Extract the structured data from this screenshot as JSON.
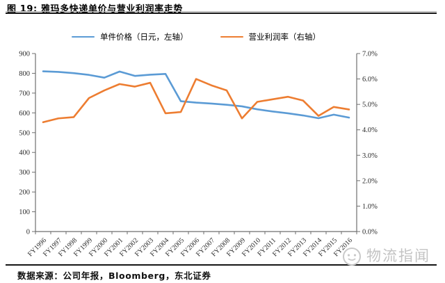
{
  "figure": {
    "title": "图 19:  雅玛多快递单价与营业利润率走势",
    "source": "数据来源：公司年报，Bloomberg，东北证券",
    "watermark": "物流指闻"
  },
  "chart_data": {
    "type": "line",
    "title": "雅玛多快递单价与营业利润率走势",
    "categories": [
      "FY1996",
      "FY1997",
      "FY1998",
      "FY1999",
      "FY2000",
      "FY2001",
      "FY2002",
      "FY2003",
      "FY2004",
      "FY2005",
      "FY2006",
      "FY2007",
      "FY2008",
      "FY2009",
      "FY2010",
      "FY2011",
      "FY2012",
      "FY2013",
      "FY2014",
      "FY2015",
      "FY2016"
    ],
    "series": [
      {
        "name": "单件价格（日元，左轴）",
        "axis": "left",
        "color": "#5B9BD5",
        "values": [
          810,
          807,
          801,
          792,
          778,
          809,
          787,
          793,
          797,
          659,
          652,
          647,
          641,
          633,
          618,
          607,
          598,
          587,
          573,
          591,
          576
        ]
      },
      {
        "name": "营业利润率（右轴）",
        "axis": "right",
        "color": "#ED7D31",
        "values": [
          4.3,
          4.45,
          4.5,
          5.25,
          5.55,
          5.8,
          5.7,
          5.85,
          4.65,
          4.7,
          6.0,
          5.75,
          5.55,
          4.45,
          5.1,
          5.2,
          5.3,
          5.15,
          4.55,
          4.9,
          4.8
        ]
      }
    ],
    "left_axis": {
      "min": 0,
      "max": 900,
      "step": 100,
      "tick_labels": [
        "0",
        "100",
        "200",
        "300",
        "400",
        "500",
        "600",
        "700",
        "800",
        "900"
      ]
    },
    "right_axis": {
      "min": 0,
      "max": 7,
      "step": 1,
      "tick_labels": [
        "0.0%",
        "1.0%",
        "2.0%",
        "3.0%",
        "4.0%",
        "5.0%",
        "6.0%",
        "7.0%"
      ]
    },
    "legend_position": "top",
    "grid": false
  }
}
